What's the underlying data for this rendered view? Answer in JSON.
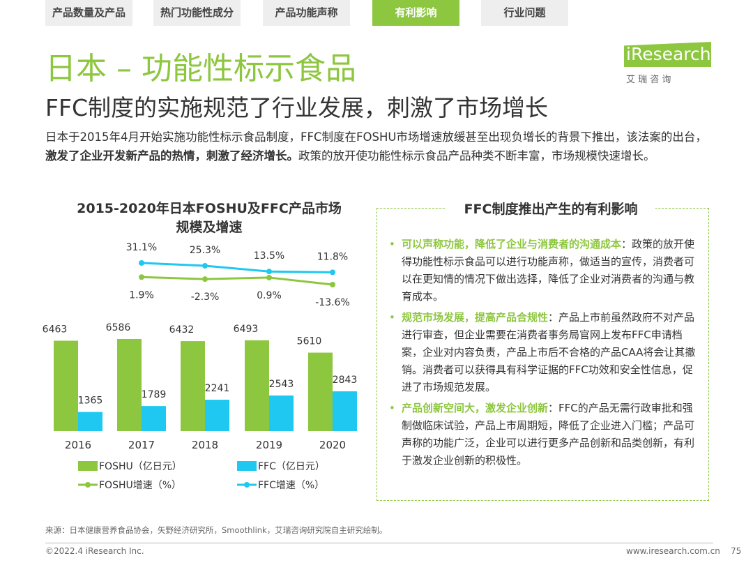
{
  "tabs": [
    "产品数量及产品",
    "热门功能性成分",
    "产品功能声称",
    "有利影响",
    "行业问题"
  ],
  "active_tab": 3,
  "title": "日本 – 功能性标示食品",
  "logo": {
    "name": "iResearch",
    "subtitle": "艾 瑞 咨 询"
  },
  "subtitle": "FFC制度的实施规范了行业发展，刺激了市场增长",
  "intro": [
    {
      "text": "日本于2015年4月开始实施功能性标示食品制度，FFC制度在FOSHU市场增速放缓甚至出现负增长的背景下推出，该法案的出台，",
      "bold": false
    },
    {
      "text": "激发了企业开发新产品的热情，刺激了经济增长。",
      "bold": true
    },
    {
      "text": "政策的放开使功能性标示食品产品种类不断丰富，市场规模快速增长。",
      "bold": false
    }
  ],
  "chart_data": {
    "type": "bar",
    "title": "2015-2020年日本FOSHU及FFC产品市场规模及增速",
    "categories": [
      "2016",
      "2017",
      "2018",
      "2019",
      "2020"
    ],
    "series": [
      {
        "name": "FOSHU（亿日元）",
        "type": "bar",
        "color": "#8dc63f",
        "values": [
          6463,
          6586,
          6432,
          6493,
          5610
        ]
      },
      {
        "name": "FFC（亿日元）",
        "type": "bar",
        "color": "#1ec8f0",
        "values": [
          1365,
          1789,
          2241,
          2543,
          2843
        ]
      },
      {
        "name": "FOSHU增速（%）",
        "type": "line",
        "axis": "y2",
        "color": "#8dc63f",
        "values": [
          null,
          1.9,
          -2.3,
          0.9,
          -13.6
        ],
        "value_labels": [
          null,
          "1.9%",
          "-2.3%",
          "0.9%",
          "-13.6%"
        ]
      },
      {
        "name": "FFC增速（%）",
        "type": "line",
        "axis": "y2",
        "color": "#1ec8f0",
        "values": [
          null,
          31.1,
          25.3,
          13.5,
          11.8
        ],
        "value_labels": [
          null,
          "31.1%",
          "25.3%",
          "13.5%",
          "11.8%"
        ]
      }
    ]
  },
  "impact": {
    "title": "FFC制度推出产生的有利影响",
    "items": [
      {
        "head": "可以声称功能，降低了企业与消费者的沟通成本",
        "body": "：政策的放开使得功能性标示食品可以进行功能声称，做适当的宣传，消费者可以在更知情的情况下做出选择，降低了企业对消费者的沟通与教育成本。"
      },
      {
        "head": "规范市场发展，提高产品合规性",
        "body": "：产品上市前虽然政府不对产品进行审查，但企业需要在消费者事务局官网上发布FFC申请档案，企业对内容负责，产品上市后不合格的产品CAA将会让其撤销。消费者可以获得具有科学证据的FFC功效和安全性信息，促进了市场规范发展。"
      },
      {
        "head": "产品创新空间大，激发企业创新",
        "body": "：FFC的产品无需行政审批和强制做临床试验，产品上市周期短，降低了企业进入门槛；产品可声称的功能广泛，企业可以进行更多产品创新和品类创新，有利于激发企业创新的积极性。"
      }
    ]
  },
  "source": "来源：日本健康营养食品协会，矢野经济研究所，Smoothlink，艾瑞咨询研究院自主研究绘制。",
  "footer": {
    "copyright": "©2022.4 iResearch Inc.",
    "website": "www.iresearch.com.cn",
    "page": "75"
  }
}
